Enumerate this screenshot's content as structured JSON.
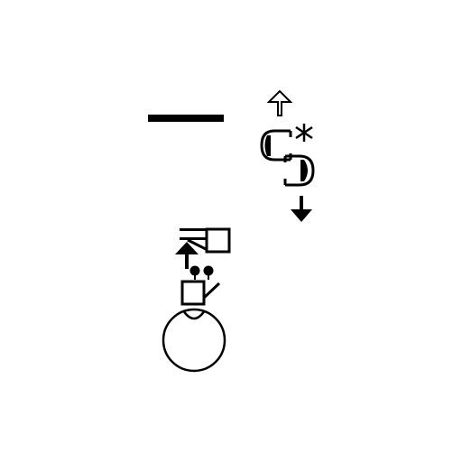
{
  "symbols": [
    {
      "name": "horizontal-bar-icon"
    },
    {
      "name": "hollow-up-arrow-icon"
    },
    {
      "name": "asterisk-icon"
    },
    {
      "name": "half-filled-c-icon"
    },
    {
      "name": "half-filled-reversed-c-icon"
    },
    {
      "name": "filled-down-arrow-icon"
    },
    {
      "name": "square-with-bars-icon"
    },
    {
      "name": "filled-up-arrow-icon"
    },
    {
      "name": "two-dots-icon"
    },
    {
      "name": "square-with-stroke-icon"
    },
    {
      "name": "circle-with-notch-icon"
    }
  ],
  "colors": {
    "ink": "#000000",
    "background": "#ffffff"
  }
}
